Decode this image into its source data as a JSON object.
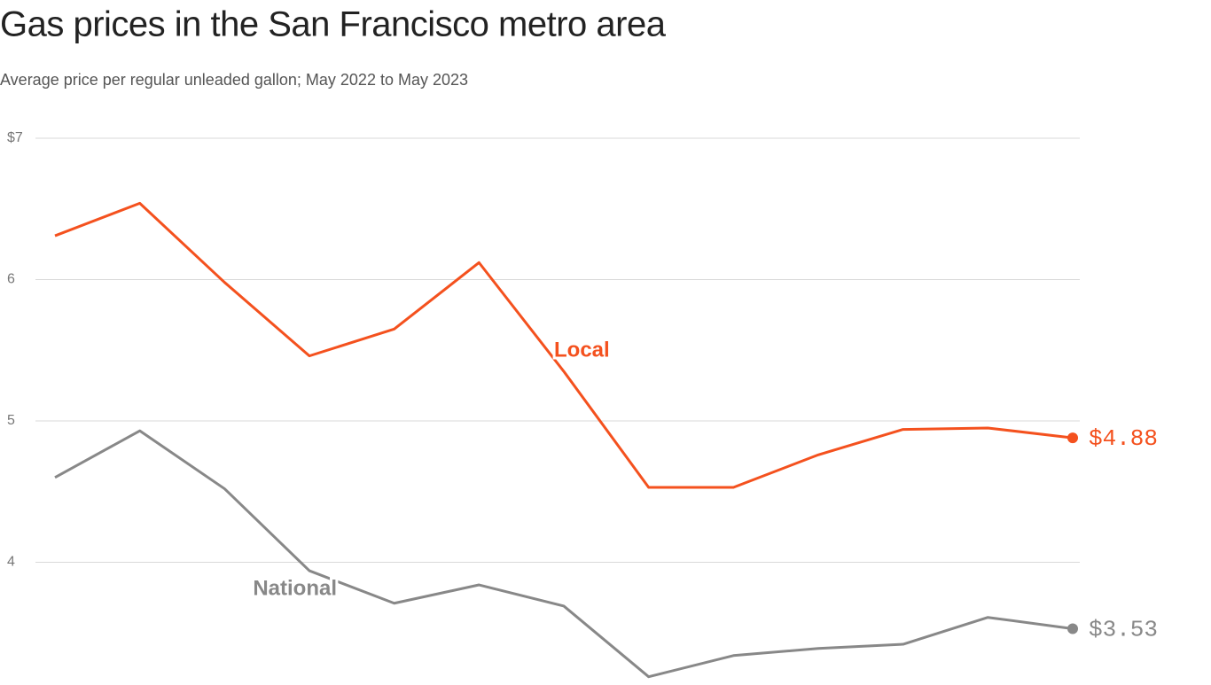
{
  "chart_data": {
    "type": "line",
    "title": "Gas prices in the San Francisco metro area",
    "subtitle": "Average price per regular unleaded gallon; May 2022 to May 2023",
    "categories": [
      null,
      null,
      null,
      null,
      null,
      null,
      null,
      null,
      null,
      null,
      null,
      null,
      null
    ],
    "series": [
      {
        "name": "Local",
        "color": "#f4511e",
        "values": [
          6.31,
          6.54,
          5.98,
          5.46,
          5.65,
          6.12,
          5.35,
          4.53,
          4.53,
          4.76,
          4.94,
          4.95,
          4.88
        ],
        "value_labels": [
          null,
          null,
          null,
          null,
          null,
          null,
          null,
          null,
          null,
          null,
          null,
          null,
          "$4.88"
        ]
      },
      {
        "name": "National",
        "color": "#888888",
        "values": [
          4.6,
          4.93,
          4.52,
          3.94,
          3.71,
          3.84,
          3.69,
          3.19,
          3.34,
          3.39,
          3.42,
          3.61,
          3.53
        ],
        "value_labels": [
          null,
          null,
          null,
          null,
          null,
          null,
          null,
          null,
          null,
          null,
          null,
          null,
          "$3.53"
        ]
      }
    ],
    "ylim": [
      3.15,
      7
    ],
    "yticks": [
      4,
      5,
      6,
      {
        "value": 7,
        "label": "$7"
      }
    ],
    "grid": true
  }
}
